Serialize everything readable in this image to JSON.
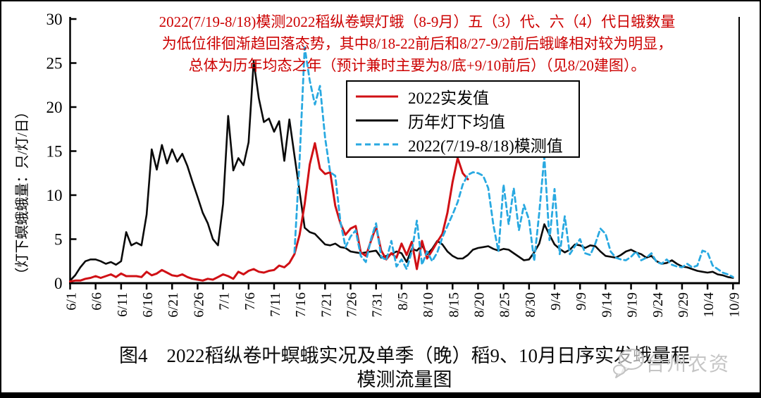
{
  "chart_data": {
    "type": "line",
    "title_lines": [
      "2022(7/19-8/18)模测2022稻纵卷螟灯蛾（8-9月）五（3）代、六（4）代日蛾数量",
      "为低位徘徊渐趋回落态势，其中8/18-22前后和8/27-9/2前后蛾峰相对较为明显，",
      "总体为历年均态之年（预计兼时主要为8/底+9/10前后）（见8/20建图）。"
    ],
    "title_color": "#cc0000",
    "ylabel": "（灯下螟蛾蛾量：只/灯/日）",
    "yticks": [
      0,
      5,
      10,
      15,
      20,
      25,
      30
    ],
    "ylim": [
      0,
      30
    ],
    "x_start_date": "6/1",
    "x_end_date": "10/9",
    "x_days_per_tick": 5,
    "x_tick_labels": [
      "6/1",
      "6/6",
      "6/11",
      "6/16",
      "6/21",
      "6/26",
      "7/1",
      "7/6",
      "7/11",
      "7/16",
      "7/21",
      "7/26",
      "7/31",
      "8/5",
      "8/10",
      "8/15",
      "8/20",
      "8/25",
      "8/30",
      "9/4",
      "9/9",
      "9/14",
      "9/19",
      "9/24",
      "9/29",
      "10/4",
      "10/9"
    ],
    "grid": false,
    "legend_position": "upper-center-right",
    "series": [
      {
        "name": "2022实发值",
        "color": "#d01015",
        "style": "solid",
        "width": 3,
        "z": 2,
        "start_day": 0,
        "values": [
          0.2,
          0.3,
          0.3,
          0.5,
          0.6,
          0.8,
          0.6,
          0.8,
          1.0,
          0.7,
          1.1,
          0.8,
          0.8,
          0.8,
          0.7,
          1.3,
          0.9,
          1.1,
          1.5,
          1.2,
          0.9,
          0.8,
          1.0,
          0.7,
          0.5,
          0.4,
          0.3,
          0.5,
          0.4,
          0.7,
          1.0,
          0.8,
          0.5,
          1.3,
          1.0,
          1.4,
          1.6,
          1.3,
          1.2,
          1.4,
          1.5,
          2.0,
          1.8,
          2.3,
          3.3,
          5.5,
          9.0,
          13.5,
          15.9,
          13.0,
          12.4,
          12.6,
          8.8,
          6.8,
          5.5,
          6.2,
          6.5,
          3.5,
          3.1,
          4.8,
          6.4,
          3.7,
          2.7,
          3.4,
          2.9,
          4.5,
          3.2,
          4.7,
          1.6,
          4.8,
          2.8,
          3.7,
          4.7,
          5.6,
          8.0,
          11.5,
          14.2,
          12.5,
          11.8
        ]
      },
      {
        "name": "历年灯下均值",
        "color": "#0a0a0a",
        "style": "solid",
        "width": 2.6,
        "z": 1,
        "start_day": 0,
        "values": [
          0.3,
          0.9,
          1.8,
          2.5,
          2.7,
          2.7,
          2.5,
          2.2,
          2.4,
          2.1,
          2.5,
          5.8,
          4.3,
          4.6,
          4.3,
          7.8,
          15.2,
          12.9,
          15.7,
          13.6,
          15.2,
          13.8,
          14.7,
          13.3,
          11.5,
          9.8,
          8.0,
          6.8,
          5.0,
          4.3,
          9.0,
          19.0,
          12.8,
          14.2,
          13.4,
          16.0,
          25.2,
          21.0,
          18.3,
          18.7,
          17.2,
          18.4,
          13.9,
          18.6,
          14.5,
          10.4,
          6.3,
          5.8,
          5.6,
          5.0,
          4.4,
          4.3,
          4.5,
          4.1,
          4.0,
          3.6,
          3.5,
          3.4,
          3.5,
          3.6,
          3.7,
          2.9,
          3.1,
          3.3,
          3.6,
          3.4,
          2.4,
          3.9,
          3.7,
          4.3,
          3.3,
          3.9,
          4.8,
          4.4,
          3.6,
          3.1,
          2.8,
          2.8,
          3.2,
          3.8,
          4.0,
          4.1,
          4.2,
          3.9,
          3.7,
          3.9,
          3.8,
          3.4,
          3.0,
          2.6,
          2.7,
          3.5,
          4.5,
          6.7,
          5.5,
          4.4,
          3.9,
          3.5,
          3.8,
          4.4,
          4.3,
          4.0,
          4.3,
          4.2,
          3.6,
          3.1,
          3.0,
          2.9,
          3.2,
          3.6,
          3.8,
          3.5,
          3.3,
          2.9,
          3.1,
          2.5,
          2.2,
          2.3,
          2.6,
          2.2,
          1.9,
          1.8,
          1.6,
          1.4,
          1.3,
          1.2,
          1.3,
          1.0,
          0.9,
          0.7,
          0.6
        ]
      },
      {
        "name": "2022(7/19-8/18)模测值",
        "color": "#29a9e1",
        "style": "dashed",
        "width": 2.8,
        "z": 3,
        "start_day": 44,
        "values": [
          3.5,
          14.0,
          26.8,
          23.0,
          20.3,
          22.4,
          16.5,
          12.6,
          12.2,
          7.0,
          4.1,
          5.3,
          6.0,
          3.1,
          2.4,
          5.0,
          6.8,
          3.0,
          2.6,
          4.8,
          1.9,
          2.7,
          1.6,
          3.6,
          7.1,
          2.1,
          3.6,
          2.5,
          3.5,
          5.2,
          6.5,
          7.8,
          9.2,
          11.2,
          12.3,
          12.6,
          12.5,
          12.2,
          10.8,
          6.6,
          3.6,
          11.2,
          6.7,
          10.8,
          6.0,
          8.9,
          7.2,
          2.5,
          8.0,
          14.4,
          4.9,
          10.7,
          3.3,
          7.6,
          3.3,
          4.2,
          5.0,
          3.4,
          3.2,
          4.5,
          6.2,
          5.6,
          3.6,
          2.9,
          2.7,
          2.6,
          3.0,
          3.6,
          2.6,
          2.9,
          3.4,
          2.4,
          2.2,
          2.7,
          2.1,
          1.9,
          1.8,
          2.2,
          1.8,
          2.0,
          3.7,
          3.5,
          2.0,
          1.6,
          1.2,
          1.0,
          0.7
        ]
      }
    ]
  },
  "caption": {
    "line1": "图4　2022稻纵卷叶螟蛾实况及单季（晚）稻9、10月日序实发蛾量程",
    "line2": "模测流量图"
  },
  "watermark": {
    "text": "台州农资",
    "icon": "chat-bubbles-icon",
    "color": "#c5c5c5"
  }
}
